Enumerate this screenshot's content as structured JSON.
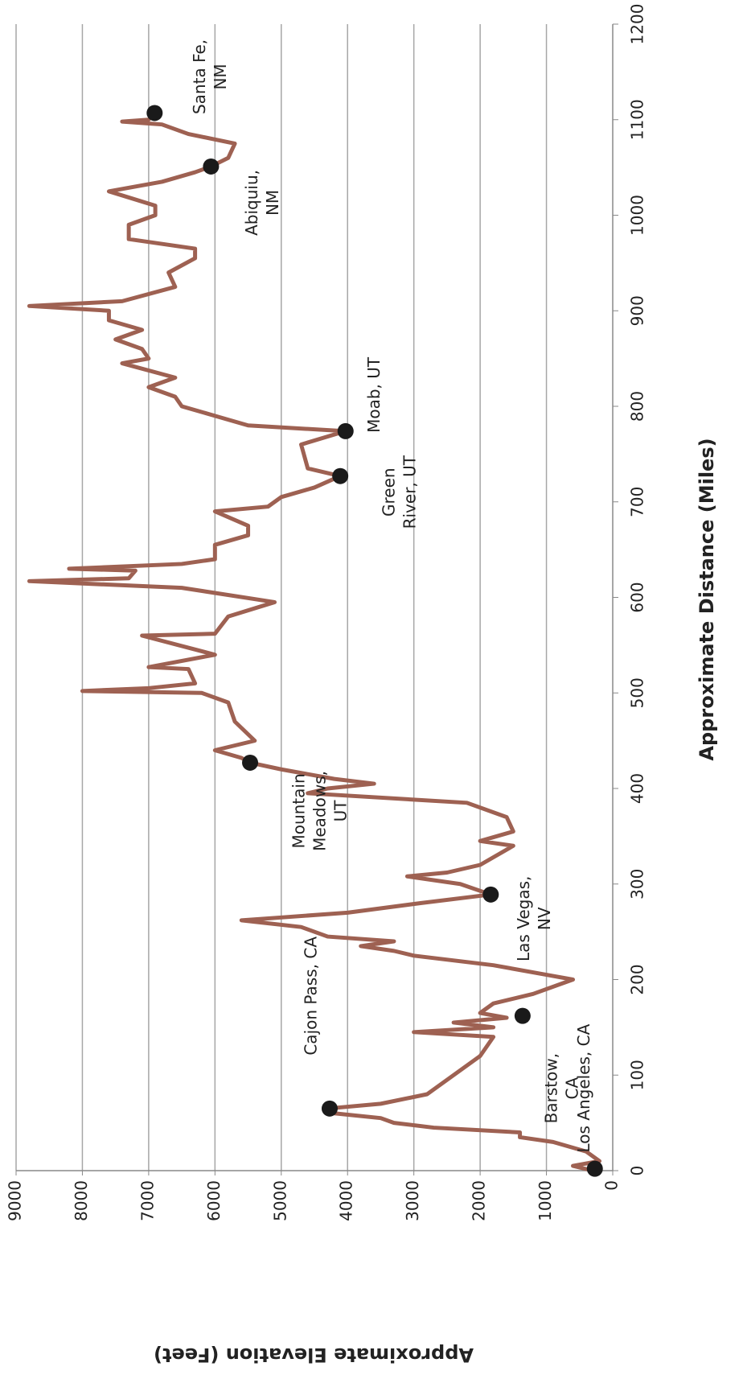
{
  "chart_data": {
    "type": "line",
    "x_label": "Approximate Distance (Miles)",
    "y_label": "Approximate Elevation (Feet)",
    "x": [
      0,
      5,
      10,
      20,
      30,
      35,
      40,
      45,
      50,
      55,
      60,
      65,
      70,
      80,
      100,
      120,
      140,
      145,
      150,
      155,
      160,
      165,
      175,
      185,
      200,
      205,
      215,
      225,
      230,
      235,
      240,
      245,
      255,
      262,
      265,
      270,
      280,
      289,
      300,
      308,
      312,
      320,
      340,
      345,
      355,
      370,
      385,
      395,
      400,
      405,
      410,
      420,
      427,
      432,
      440,
      450,
      470,
      490,
      500,
      502,
      505,
      510,
      525,
      527,
      540,
      560,
      562,
      580,
      595,
      610,
      617,
      620,
      628,
      630,
      635,
      640,
      655,
      665,
      675,
      690,
      695,
      705,
      715,
      727,
      735,
      760,
      774,
      780,
      790,
      800,
      810,
      820,
      830,
      845,
      850,
      860,
      870,
      880,
      890,
      900,
      905,
      910,
      925,
      940,
      955,
      965,
      975,
      990,
      1000,
      1010,
      1025,
      1035,
      1045,
      1051,
      1060,
      1075,
      1085,
      1095,
      1098,
      1100,
      1107
    ],
    "values": [
      300,
      600,
      200,
      400,
      900,
      1400,
      1400,
      2700,
      3300,
      3500,
      4200,
      4300,
      3500,
      2800,
      2400,
      2000,
      1800,
      3000,
      1800,
      2400,
      1600,
      2000,
      1800,
      1200,
      600,
      1000,
      1800,
      3000,
      3300,
      3800,
      3300,
      4300,
      4700,
      5600,
      5000,
      4000,
      2900,
      1840,
      2300,
      3100,
      2500,
      2000,
      1500,
      2000,
      1500,
      1600,
      2200,
      4600,
      4300,
      3600,
      4200,
      5000,
      5470,
      5600,
      6000,
      5400,
      5700,
      5800,
      6200,
      8000,
      7000,
      6300,
      6400,
      7000,
      6000,
      7100,
      6000,
      5800,
      5100,
      6500,
      8800,
      7300,
      7200,
      8200,
      6500,
      6000,
      6000,
      5500,
      5500,
      6000,
      5200,
      5000,
      4500,
      4110,
      4600,
      4700,
      4030,
      5500,
      6000,
      6500,
      6600,
      7000,
      6600,
      7400,
      7000,
      7100,
      7500,
      7100,
      7600,
      7600,
      8800,
      7400,
      6600,
      6700,
      6300,
      6300,
      7300,
      7300,
      6900,
      6900,
      7600,
      6800,
      6300,
      6060,
      5800,
      5700,
      6400,
      6800,
      7400,
      7000,
      6910
    ],
    "color": "#9e6152",
    "points": [
      {
        "label_lines": [
          "Los Angeles, CA"
        ],
        "x": 2,
        "y": 270
      },
      {
        "label_lines": [
          "Cajon Pass, CA"
        ],
        "x": 65,
        "y": 4270
      },
      {
        "label_lines": [
          "Barstow,",
          "CA"
        ],
        "x": 162,
        "y": 1360
      },
      {
        "label_lines": [
          "Las Vegas,",
          "NV"
        ],
        "x": 289,
        "y": 1840
      },
      {
        "label_lines": [
          "Mountain",
          "Meadows,",
          "UT"
        ],
        "x": 427,
        "y": 5470
      },
      {
        "label_lines": [
          "Green",
          "River, UT"
        ],
        "x": 727,
        "y": 4110
      },
      {
        "label_lines": [
          "Moab, UT"
        ],
        "x": 774,
        "y": 4030
      },
      {
        "label_lines": [
          "Abiquiu,",
          "NM"
        ],
        "x": 1051,
        "y": 6060
      },
      {
        "label_lines": [
          "Santa Fe,",
          "NM"
        ],
        "x": 1107,
        "y": 6910
      }
    ],
    "marker_color": "#1a1a1a",
    "xlim": [
      0,
      1200
    ],
    "xticks": [
      0,
      100,
      200,
      300,
      400,
      500,
      600,
      700,
      800,
      900,
      1000,
      1100,
      1200
    ],
    "ylim": [
      0,
      9000
    ],
    "yticks": [
      0,
      1000,
      2000,
      3000,
      4000,
      5000,
      6000,
      7000,
      8000,
      9000
    ],
    "grid": true
  }
}
